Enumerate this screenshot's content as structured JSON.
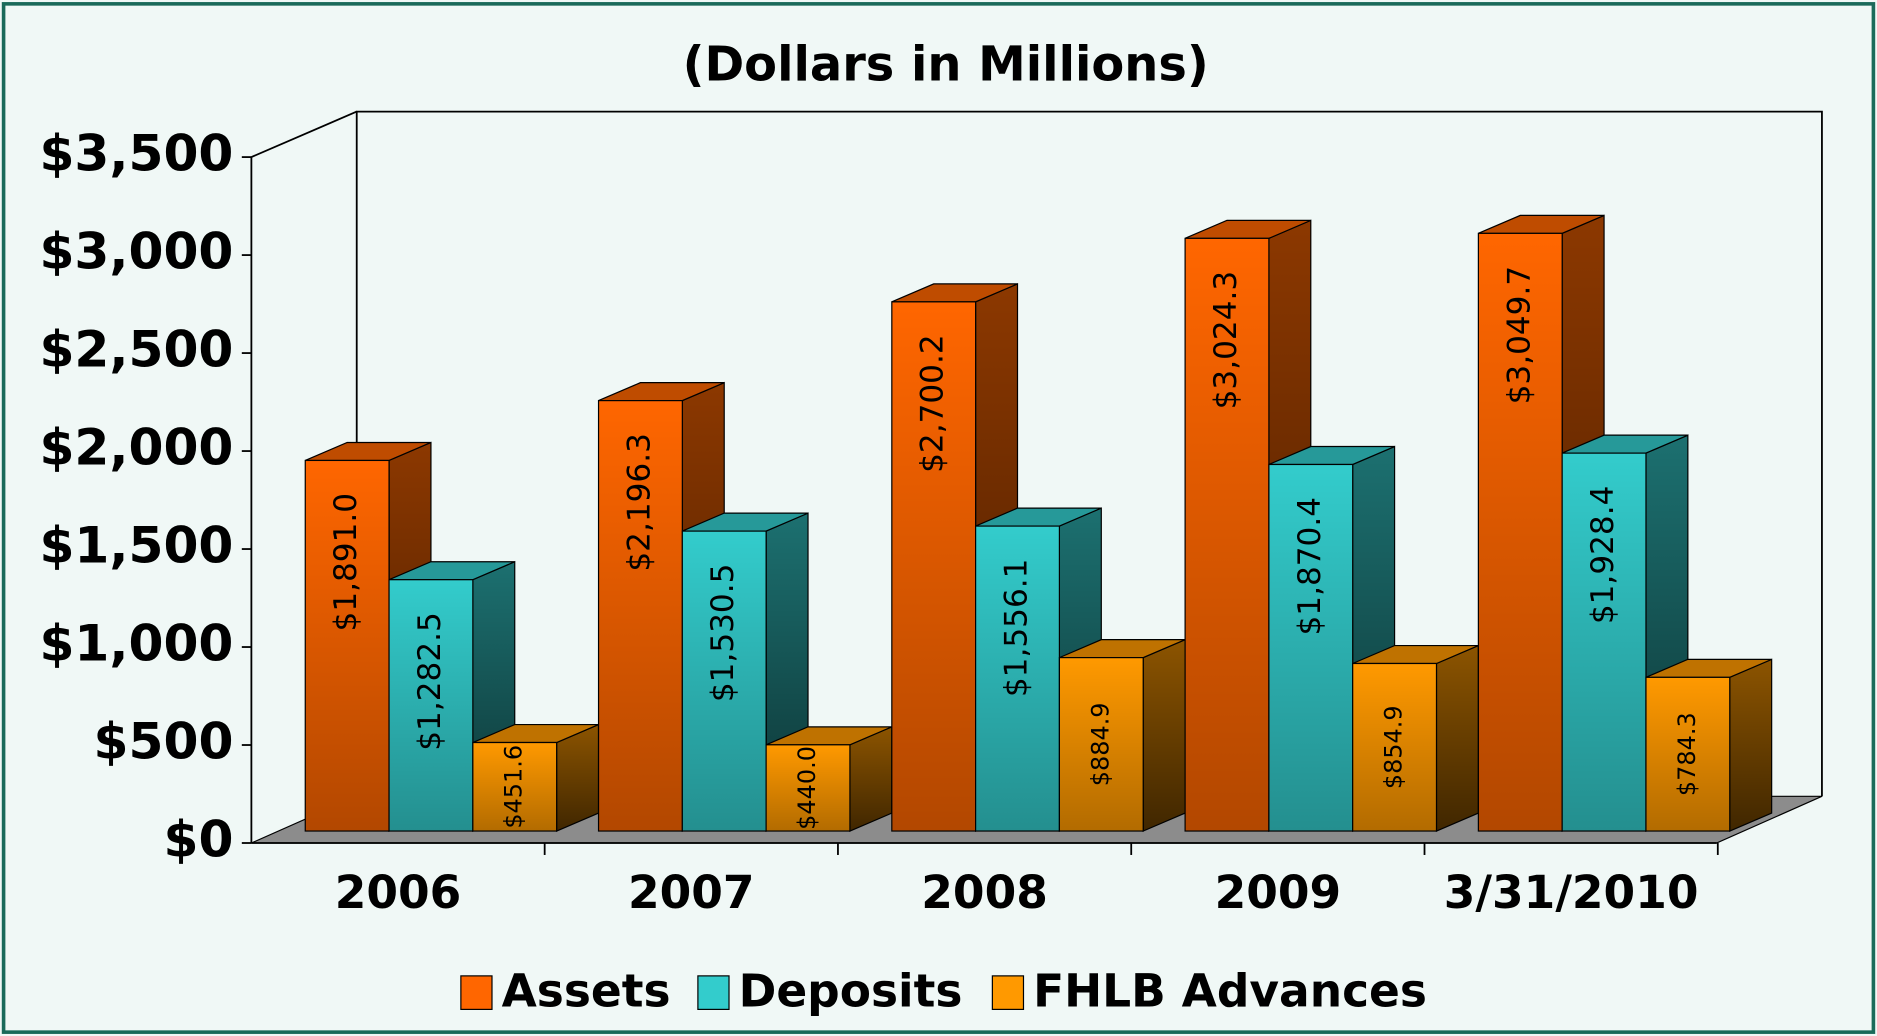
{
  "chart_data": {
    "type": "bar3d",
    "title": "(Dollars in Millions)",
    "categories": [
      "2006",
      "2007",
      "2008",
      "2009",
      "3/31/2010"
    ],
    "series": [
      {
        "name": "Assets",
        "color": "#ff6600",
        "values": [
          1891.0,
          2196.3,
          2700.2,
          3024.3,
          3049.7
        ],
        "value_labels": [
          "$1,891.0",
          "$2,196.3",
          "$2,700.2",
          "$3,024.3",
          "$3,049.7"
        ]
      },
      {
        "name": "Deposits",
        "color": "#33cccc",
        "values": [
          1282.5,
          1530.5,
          1556.1,
          1870.4,
          1928.4
        ],
        "value_labels": [
          "$1,282.5",
          "$1,530.5",
          "$1,556.1",
          "$1,870.4",
          "$1,928.4"
        ]
      },
      {
        "name": "FHLB Advances",
        "color": "#ff9900",
        "values": [
          451.6,
          440.0,
          884.9,
          854.9,
          784.3
        ],
        "value_labels": [
          "$451.6",
          "$440.0",
          "$884.9",
          "$854.9",
          "$784.3"
        ]
      }
    ],
    "ylim": [
      0,
      3500
    ],
    "yticks": [
      {
        "value": 0,
        "label": "$0"
      },
      {
        "value": 500,
        "label": "$500"
      },
      {
        "value": 1000,
        "label": "$1,000"
      },
      {
        "value": 1500,
        "label": "$1,500"
      },
      {
        "value": 2000,
        "label": "$2,000"
      },
      {
        "value": 2500,
        "label": "$2,500"
      },
      {
        "value": 3000,
        "label": "$3,000"
      },
      {
        "value": 3500,
        "label": "$3,500"
      }
    ],
    "legend": "bottom"
  }
}
